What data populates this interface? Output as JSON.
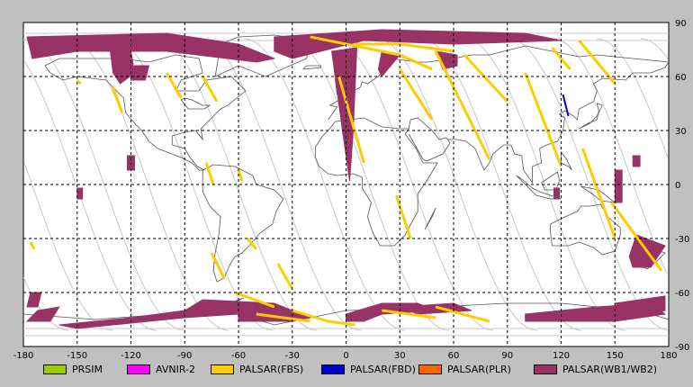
{
  "axes": {
    "x_ticks": [
      "-180",
      "-150",
      "-120",
      "-90",
      "-60",
      "-30",
      "0",
      "30",
      "60",
      "90",
      "120",
      "150",
      "180"
    ],
    "y_ticks": [
      "90",
      "60",
      "30",
      "0",
      "-30",
      "-60",
      "-90"
    ],
    "x_values": [
      -180,
      -150,
      -120,
      -90,
      -60,
      -30,
      0,
      30,
      60,
      90,
      120,
      150,
      180
    ],
    "y_values": [
      90,
      60,
      30,
      0,
      -30,
      -60,
      -90
    ],
    "xlim": [
      -180,
      180
    ],
    "ylim": [
      -90,
      90
    ],
    "grid": true
  },
  "legend": [
    {
      "key": "prism",
      "label": "PRSIM",
      "color": "#99cc00"
    },
    {
      "key": "avnir2",
      "label": "AVNIR-2",
      "color": "#ff00ff"
    },
    {
      "key": "fbs",
      "label": "PALSAR(FBS)",
      "color": "#ffcc00"
    },
    {
      "key": "fbd",
      "label": "PALSAR(FBD)",
      "color": "#0000cc"
    },
    {
      "key": "plr",
      "label": "PALSAR(PLR)",
      "color": "#ff6600"
    },
    {
      "key": "wb",
      "label": "PALSAR(WB1/WB2)",
      "color": "#993366"
    }
  ],
  "colors": {
    "background": "#c0c0c0",
    "map": "#ffffff",
    "grid": "#000000",
    "orbit": "#c8c8c8",
    "coast": "#555555"
  },
  "chart_data": {
    "type": "map",
    "xlim": [
      -180,
      180
    ],
    "ylim": [
      -90,
      90
    ],
    "wb_swaths": [
      [
        [
          -178,
          82
        ],
        [
          -100,
          84
        ],
        [
          -60,
          78
        ],
        [
          -40,
          70
        ],
        [
          -50,
          68
        ],
        [
          -100,
          74
        ],
        [
          -150,
          74
        ],
        [
          -175,
          70
        ]
      ],
      [
        [
          -132,
          78
        ],
        [
          -120,
          74
        ],
        [
          -118,
          62
        ],
        [
          -126,
          56
        ],
        [
          -130,
          62
        ]
      ],
      [
        [
          -118,
          66
        ],
        [
          -110,
          66
        ],
        [
          -112,
          58
        ],
        [
          -120,
          58
        ]
      ],
      [
        [
          -40,
          82
        ],
        [
          20,
          86
        ],
        [
          100,
          84
        ],
        [
          120,
          80
        ],
        [
          60,
          78
        ],
        [
          10,
          80
        ],
        [
          -30,
          70
        ],
        [
          -40,
          74
        ]
      ],
      [
        [
          -8,
          74
        ],
        [
          6,
          76
        ],
        [
          4,
          30
        ],
        [
          2,
          2
        ],
        [
          -2,
          30
        ]
      ],
      [
        [
          20,
          74
        ],
        [
          30,
          72
        ],
        [
          20,
          60
        ],
        [
          18,
          64
        ]
      ],
      [
        [
          50,
          74
        ],
        [
          62,
          72
        ],
        [
          62,
          66
        ],
        [
          54,
          64
        ]
      ],
      [
        [
          -122,
          16
        ],
        [
          -118,
          16
        ],
        [
          -118,
          8
        ],
        [
          -122,
          8
        ]
      ],
      [
        [
          -150,
          -2
        ],
        [
          -147,
          -2
        ],
        [
          -147,
          -8
        ],
        [
          -150,
          -8
        ]
      ],
      [
        [
          150,
          8
        ],
        [
          154,
          8
        ],
        [
          154,
          -10
        ],
        [
          150,
          -10
        ]
      ],
      [
        [
          116,
          -2
        ],
        [
          119,
          -2
        ],
        [
          119,
          -8
        ],
        [
          116,
          -8
        ]
      ],
      [
        [
          160,
          16
        ],
        [
          164,
          16
        ],
        [
          164,
          10
        ],
        [
          160,
          10
        ]
      ],
      [
        [
          162,
          -28
        ],
        [
          178,
          -34
        ],
        [
          170,
          -46
        ],
        [
          160,
          -46
        ],
        [
          158,
          -40
        ]
      ],
      [
        [
          -176,
          -60
        ],
        [
          -170,
          -60
        ],
        [
          -172,
          -68
        ],
        [
          -178,
          -68
        ]
      ],
      [
        [
          -172,
          -70
        ],
        [
          -160,
          -68
        ],
        [
          -165,
          -76
        ],
        [
          -178,
          -76
        ]
      ],
      [
        [
          -80,
          -64
        ],
        [
          -40,
          -66
        ],
        [
          -30,
          -70
        ],
        [
          -60,
          -72
        ],
        [
          -90,
          -74
        ],
        [
          -110,
          -76
        ],
        [
          -150,
          -80
        ],
        [
          -160,
          -78
        ],
        [
          -120,
          -74
        ],
        [
          -90,
          -70
        ]
      ],
      [
        [
          -60,
          -68
        ],
        [
          -40,
          -68
        ],
        [
          -20,
          -74
        ],
        [
          -30,
          -76
        ],
        [
          -60,
          -76
        ]
      ],
      [
        [
          0,
          -72
        ],
        [
          20,
          -66
        ],
        [
          40,
          -66
        ],
        [
          50,
          -70
        ],
        [
          20,
          -72
        ],
        [
          10,
          -76
        ],
        [
          0,
          -76
        ]
      ],
      [
        [
          30,
          -68
        ],
        [
          60,
          -66
        ],
        [
          70,
          -70
        ],
        [
          40,
          -72
        ]
      ],
      [
        [
          100,
          -72
        ],
        [
          140,
          -68
        ],
        [
          170,
          -66
        ],
        [
          178,
          -72
        ],
        [
          150,
          -76
        ],
        [
          120,
          -76
        ],
        [
          100,
          -76
        ]
      ],
      [
        [
          150,
          -66
        ],
        [
          178,
          -62
        ],
        [
          178,
          -70
        ],
        [
          160,
          -74
        ]
      ]
    ],
    "fbs_tracks": [
      [
        [
          -150,
          58
        ],
        [
          -148,
          56
        ]
      ],
      [
        -1
      ],
      [
        [
          -130,
          54
        ],
        [
          -125,
          40
        ]
      ],
      [
        [
          -100,
          62
        ],
        [
          -92,
          48
        ]
      ],
      [
        [
          -80,
          60
        ],
        [
          -72,
          46
        ]
      ],
      [
        [
          -78,
          12
        ],
        [
          -74,
          0
        ]
      ],
      [
        [
          -58,
          2
        ],
        [
          -60,
          8
        ]
      ],
      [
        [
          -38,
          -44
        ],
        [
          -30,
          -58
        ]
      ],
      [
        [
          -55,
          -30
        ],
        [
          -50,
          -36
        ]
      ],
      [
        [
          -75,
          -38
        ],
        [
          -68,
          -52
        ]
      ],
      [
        [
          -20,
          82
        ],
        [
          10,
          76
        ],
        [
          30,
          72
        ],
        [
          48,
          64
        ]
      ],
      [
        [
          5,
          78
        ],
        [
          30,
          78
        ],
        [
          60,
          74
        ]
      ],
      [
        [
          -4,
          60
        ],
        [
          10,
          12
        ]
      ],
      [
        [
          30,
          64
        ],
        [
          48,
          36
        ]
      ],
      [
        [
          28,
          -6
        ],
        [
          36,
          -30
        ]
      ],
      [
        [
          50,
          74
        ],
        [
          80,
          14
        ]
      ],
      [
        [
          66,
          72
        ],
        [
          90,
          46
        ]
      ],
      [
        [
          100,
          62
        ],
        [
          120,
          10
        ]
      ],
      [
        [
          115,
          76
        ],
        [
          125,
          64
        ]
      ],
      [
        [
          130,
          80
        ],
        [
          150,
          56
        ]
      ],
      [
        [
          132,
          20
        ],
        [
          150,
          -30
        ]
      ],
      [
        [
          148,
          -10
        ],
        [
          176,
          -48
        ]
      ],
      [
        [
          -176,
          -32
        ],
        [
          -174,
          -36
        ]
      ],
      [
        [
          -30,
          -70
        ],
        [
          -10,
          -76
        ],
        [
          5,
          -78
        ]
      ],
      [
        [
          20,
          -70
        ],
        [
          50,
          -74
        ]
      ],
      [
        [
          50,
          -68
        ],
        [
          80,
          -76
        ]
      ],
      [
        [
          -62,
          -60
        ],
        [
          -40,
          -68
        ]
      ],
      [
        [
          -50,
          -72
        ],
        [
          -20,
          -76
        ]
      ]
    ],
    "fbd_tracks": [
      [
        [
          121,
          50
        ],
        [
          124,
          38
        ]
      ]
    ]
  }
}
